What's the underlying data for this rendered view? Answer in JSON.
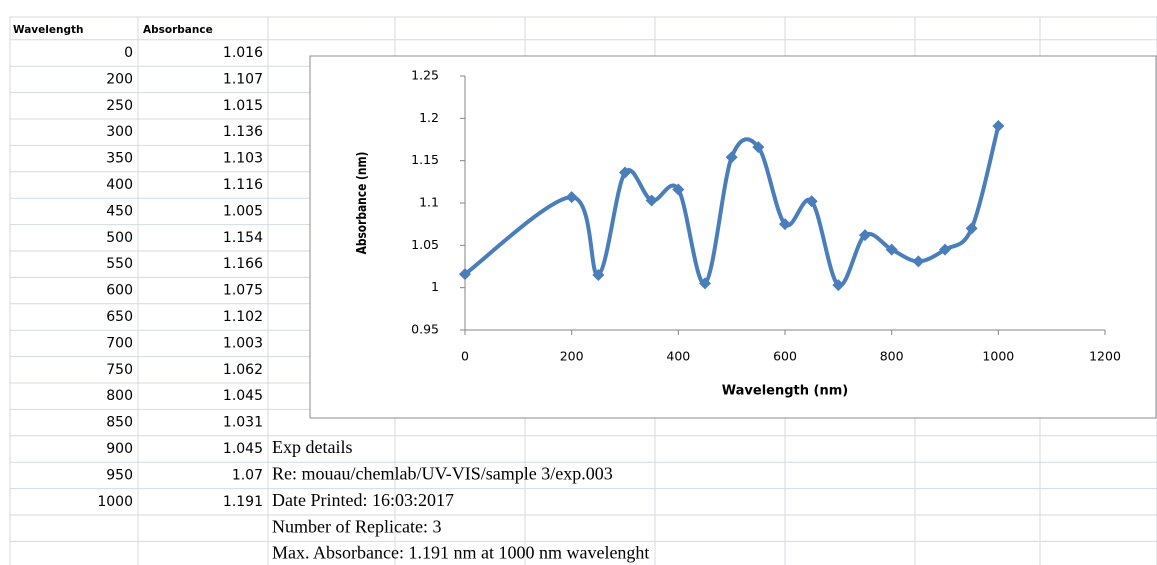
{
  "table": {
    "headers": [
      "Wavelength",
      "Absorbance"
    ],
    "rows": [
      [
        0,
        1.016
      ],
      [
        200,
        1.107
      ],
      [
        250,
        1.015
      ],
      [
        300,
        1.136
      ],
      [
        350,
        1.103
      ],
      [
        400,
        1.116
      ],
      [
        450,
        1.005
      ],
      [
        500,
        1.154
      ],
      [
        550,
        1.166
      ],
      [
        600,
        1.075
      ],
      [
        650,
        1.102
      ],
      [
        700,
        1.003
      ],
      [
        750,
        1.062
      ],
      [
        800,
        1.045
      ],
      [
        850,
        1.031
      ],
      [
        900,
        1.045
      ],
      [
        950,
        1.07
      ],
      [
        1000,
        1.191
      ]
    ]
  },
  "notes": [
    "Exp details",
    "Re:  mouau/chemlab/UV-VIS/sample 3/exp.003",
    "Date Printed: 16:03:2017",
    "Number of Replicate: 3",
    "Max. Absorbance: 1.191 nm at 1000 nm wavelenght"
  ],
  "chart_data": {
    "type": "line",
    "x_label": "Wavelength (nm)",
    "y_label": "Absorbance (nm)",
    "x": [
      0,
      200,
      250,
      300,
      350,
      400,
      450,
      500,
      550,
      600,
      650,
      700,
      750,
      800,
      850,
      900,
      950,
      1000
    ],
    "series": [
      {
        "color": "#4a7ebb",
        "values": [
          1.016,
          1.107,
          1.015,
          1.136,
          1.103,
          1.116,
          1.005,
          1.154,
          1.166,
          1.075,
          1.102,
          1.003,
          1.062,
          1.045,
          1.031,
          1.045,
          1.07,
          1.191
        ]
      }
    ],
    "xlim": [
      0,
      1200
    ],
    "xticks": [
      0,
      200,
      400,
      600,
      800,
      1000,
      1200
    ],
    "ylim": [
      0.95,
      1.25
    ],
    "yticks": [
      0.95,
      1,
      1.05,
      1.1,
      1.15,
      1.2,
      1.25
    ],
    "smooth": true,
    "grid": false
  }
}
